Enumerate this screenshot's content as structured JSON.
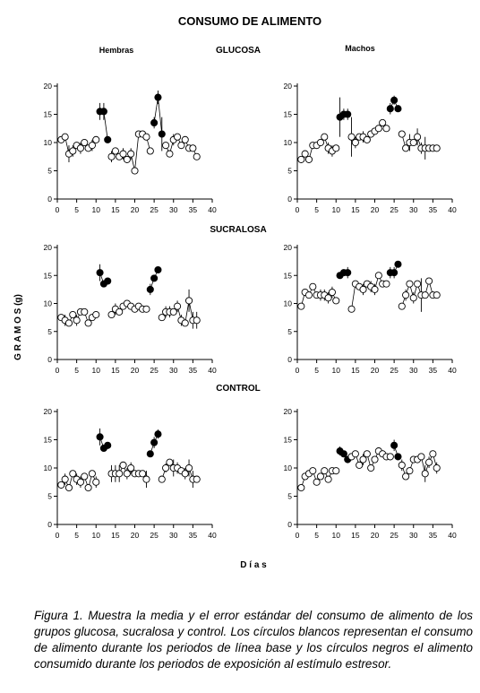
{
  "figure": {
    "title": "CONSUMO DE ALIMENTO",
    "col_labels": [
      "Hembras",
      "Machos"
    ],
    "ylabel": "G R A M O S  (g)",
    "xlabel": "D í a s",
    "caption": "Figura 1. Muestra la media y el error estándar del consumo de alimento de los grupos glucosa, sucralosa y control. Los círculos blancos representan el consumo de alimento durante los periodos de línea base y los círculos negros el alimento consumido durante los periodos de exposición al estímulo estresor."
  },
  "chart_data": [
    {
      "type": "scatter",
      "group": "GLUCOSA",
      "sex": "Hembras",
      "x": [
        1,
        2,
        3,
        4,
        5,
        6,
        7,
        8,
        9,
        10,
        11,
        12,
        13,
        14,
        15,
        16,
        17,
        18,
        19,
        20,
        21,
        22,
        23,
        24,
        25,
        26,
        27,
        28,
        29,
        30,
        31,
        32,
        33,
        34,
        35,
        36
      ],
      "y": [
        10.5,
        11,
        8,
        8.5,
        9.5,
        9,
        10,
        9,
        9.5,
        10.5,
        15.5,
        15.5,
        10.5,
        7.5,
        8.5,
        7.5,
        8,
        7,
        8,
        5,
        11.5,
        11.5,
        11,
        8.5,
        13.5,
        18,
        11.5,
        9.5,
        8,
        10.5,
        11,
        9.5,
        10.5,
        9,
        9,
        7.5
      ],
      "err": [
        0,
        0,
        1.5,
        1,
        0,
        1,
        0.5,
        0,
        1,
        0,
        1.5,
        1.5,
        0,
        1,
        0,
        0,
        1,
        0,
        1,
        0,
        0,
        0,
        0,
        0,
        1,
        1.2,
        3,
        0,
        0,
        1,
        0,
        0,
        0,
        0,
        0,
        0
      ],
      "condition": [
        "base",
        "base",
        "base",
        "base",
        "base",
        "base",
        "base",
        "base",
        "base",
        "base",
        "stress",
        "stress",
        "stress",
        "base",
        "base",
        "base",
        "base",
        "base",
        "base",
        "base",
        "base",
        "base",
        "base",
        "base",
        "stress",
        "stress",
        "stress",
        "base",
        "base",
        "base",
        "base",
        "base",
        "base",
        "base",
        "base",
        "base"
      ],
      "xlim": [
        0,
        40
      ],
      "ylim": [
        0,
        20
      ],
      "xticks": [
        0,
        5,
        10,
        15,
        20,
        25,
        30,
        35,
        40
      ],
      "yticks": [
        0,
        5,
        10,
        15,
        20
      ]
    },
    {
      "type": "scatter",
      "group": "GLUCOSA",
      "sex": "Machos",
      "x": [
        1,
        2,
        3,
        4,
        5,
        6,
        7,
        8,
        9,
        10,
        11,
        12,
        13,
        14,
        15,
        16,
        17,
        18,
        19,
        20,
        21,
        22,
        23,
        24,
        25,
        26,
        27,
        28,
        29,
        30,
        31,
        32,
        33,
        34,
        35,
        36
      ],
      "y": [
        7,
        8,
        7,
        9.5,
        9.5,
        10,
        11,
        9,
        8.5,
        9,
        14.5,
        15,
        15,
        11,
        10,
        11,
        11,
        10.5,
        11.5,
        12,
        12.5,
        13.5,
        12.5,
        16,
        17.5,
        16,
        11.5,
        9,
        10,
        10,
        11,
        9,
        9,
        9,
        9,
        9
      ],
      "err": [
        0,
        0,
        0,
        0,
        0,
        0,
        0,
        1,
        1,
        0,
        3.5,
        1,
        1,
        3.5,
        1,
        0,
        1,
        0,
        0,
        0,
        0,
        0,
        0,
        1,
        0.8,
        0,
        0,
        0,
        1.5,
        0.5,
        1.5,
        1,
        2,
        0,
        0,
        0
      ],
      "condition": [
        "base",
        "base",
        "base",
        "base",
        "base",
        "base",
        "base",
        "base",
        "base",
        "base",
        "stress",
        "stress",
        "stress",
        "base",
        "base",
        "base",
        "base",
        "base",
        "base",
        "base",
        "base",
        "base",
        "base",
        "stress",
        "stress",
        "stress",
        "base",
        "base",
        "base",
        "base",
        "base",
        "base",
        "base",
        "base",
        "base",
        "base"
      ],
      "xlim": [
        0,
        40
      ],
      "ylim": [
        0,
        20
      ],
      "xticks": [
        0,
        5,
        10,
        15,
        20,
        25,
        30,
        35,
        40
      ],
      "yticks": [
        0,
        5,
        10,
        15,
        20
      ]
    },
    {
      "type": "scatter",
      "group": "SUCRALOSA",
      "sex": "Hembras",
      "x": [
        1,
        2,
        3,
        4,
        5,
        6,
        7,
        8,
        9,
        10,
        11,
        12,
        13,
        14,
        15,
        16,
        17,
        18,
        19,
        20,
        21,
        22,
        23,
        24,
        25,
        26,
        27,
        28,
        29,
        30,
        31,
        32,
        33,
        34,
        35,
        36
      ],
      "y": [
        7.5,
        7,
        6.5,
        8,
        7,
        8.5,
        8.5,
        6.5,
        7.5,
        8,
        15.5,
        13.5,
        14,
        8,
        9,
        8.5,
        9.5,
        10,
        9.5,
        9,
        9.5,
        9,
        9,
        12.5,
        14.5,
        16,
        7.5,
        8.5,
        8.5,
        8.5,
        9.5,
        7,
        6.5,
        10.5,
        7,
        7
      ],
      "err": [
        0,
        1,
        0,
        0,
        1,
        0,
        0,
        0,
        0,
        0,
        1.5,
        0,
        0,
        0,
        1,
        0,
        0,
        0,
        0,
        0,
        0,
        0,
        0,
        1,
        0,
        0,
        0,
        1,
        1,
        0,
        1,
        1,
        0,
        2,
        1.5,
        1.5
      ],
      "condition": [
        "base",
        "base",
        "base",
        "base",
        "base",
        "base",
        "base",
        "base",
        "base",
        "base",
        "stress",
        "stress",
        "stress",
        "base",
        "base",
        "base",
        "base",
        "base",
        "base",
        "base",
        "base",
        "base",
        "base",
        "stress",
        "stress",
        "stress",
        "base",
        "base",
        "base",
        "base",
        "base",
        "base",
        "base",
        "base",
        "base",
        "base"
      ],
      "xlim": [
        0,
        40
      ],
      "ylim": [
        0,
        20
      ],
      "xticks": [
        0,
        5,
        10,
        15,
        20,
        25,
        30,
        35,
        40
      ],
      "yticks": [
        0,
        5,
        10,
        15,
        20
      ]
    },
    {
      "type": "scatter",
      "group": "SUCRALOSA",
      "sex": "Machos",
      "x": [
        1,
        2,
        3,
        4,
        5,
        6,
        7,
        8,
        9,
        10,
        11,
        12,
        13,
        14,
        15,
        16,
        17,
        18,
        19,
        20,
        21,
        22,
        23,
        24,
        25,
        26,
        27,
        28,
        29,
        30,
        31,
        32,
        33,
        34,
        35,
        36
      ],
      "y": [
        9.5,
        12,
        11.5,
        13,
        11.5,
        11.5,
        11.5,
        11,
        12,
        10.5,
        15,
        15.5,
        15.5,
        9,
        13.5,
        13,
        12.5,
        13.5,
        13,
        12.5,
        15,
        13.5,
        13.5,
        15.5,
        15.5,
        17,
        9.5,
        11.5,
        13.5,
        11,
        13.5,
        11.5,
        11.5,
        14,
        11.5,
        11.5
      ],
      "err": [
        0,
        0,
        0,
        0,
        0,
        1,
        1,
        1,
        1,
        0,
        0,
        0.6,
        1,
        0,
        0,
        0,
        1,
        0,
        1,
        1,
        0,
        0,
        0,
        1,
        1,
        0,
        0,
        1,
        0,
        1,
        0,
        3,
        0,
        0,
        0,
        0
      ],
      "condition": [
        "base",
        "base",
        "base",
        "base",
        "base",
        "base",
        "base",
        "base",
        "base",
        "base",
        "stress",
        "stress",
        "stress",
        "base",
        "base",
        "base",
        "base",
        "base",
        "base",
        "base",
        "base",
        "base",
        "base",
        "stress",
        "stress",
        "stress",
        "base",
        "base",
        "base",
        "base",
        "base",
        "base",
        "base",
        "base",
        "base",
        "base"
      ],
      "xlim": [
        0,
        40
      ],
      "ylim": [
        0,
        20
      ],
      "xticks": [
        0,
        5,
        10,
        15,
        20,
        25,
        30,
        35,
        40
      ],
      "yticks": [
        0,
        5,
        10,
        15,
        20
      ]
    },
    {
      "type": "scatter",
      "group": "CONTROL",
      "sex": "Hembras",
      "x": [
        1,
        2,
        3,
        4,
        5,
        6,
        7,
        8,
        9,
        10,
        11,
        12,
        13,
        14,
        15,
        16,
        17,
        18,
        19,
        20,
        21,
        22,
        23,
        24,
        25,
        26,
        27,
        28,
        29,
        30,
        31,
        32,
        33,
        34,
        35,
        36
      ],
      "y": [
        7,
        8,
        6.5,
        9,
        8,
        7.5,
        8.5,
        6.5,
        9,
        7.5,
        15.5,
        13.5,
        14,
        9,
        9,
        9,
        10.5,
        9,
        10,
        9,
        9,
        9,
        8,
        12.5,
        14.5,
        16,
        8,
        10,
        11,
        10,
        10,
        9.5,
        9,
        10,
        8,
        8
      ],
      "err": [
        0,
        1,
        0,
        0,
        1,
        1,
        0,
        0,
        0,
        1,
        1.5,
        0,
        0,
        1.5,
        1.5,
        1.5,
        0,
        1,
        1,
        0,
        0,
        0,
        1.5,
        0,
        1,
        0.8,
        0,
        0.8,
        0.6,
        1.5,
        1,
        0,
        1,
        1.5,
        1.5,
        0
      ],
      "condition": [
        "base",
        "base",
        "base",
        "base",
        "base",
        "base",
        "base",
        "base",
        "base",
        "base",
        "stress",
        "stress",
        "stress",
        "base",
        "base",
        "base",
        "base",
        "base",
        "base",
        "base",
        "base",
        "base",
        "base",
        "stress",
        "stress",
        "stress",
        "base",
        "base",
        "base",
        "base",
        "base",
        "base",
        "base",
        "base",
        "base",
        "base"
      ],
      "xlim": [
        0,
        40
      ],
      "ylim": [
        0,
        20
      ],
      "xticks": [
        0,
        5,
        10,
        15,
        20,
        25,
        30,
        35,
        40
      ],
      "yticks": [
        0,
        5,
        10,
        15,
        20
      ]
    },
    {
      "type": "scatter",
      "group": "CONTROL",
      "sex": "Machos",
      "x": [
        1,
        2,
        3,
        4,
        5,
        6,
        7,
        8,
        9,
        10,
        11,
        12,
        13,
        14,
        15,
        16,
        17,
        18,
        19,
        20,
        21,
        22,
        23,
        24,
        25,
        26,
        27,
        28,
        29,
        30,
        31,
        32,
        33,
        34,
        35,
        36
      ],
      "y": [
        6.5,
        8.5,
        9,
        9.5,
        7.5,
        8.5,
        9.5,
        8,
        9.5,
        9.5,
        13,
        12.5,
        11.5,
        12,
        12.5,
        10.5,
        11.5,
        12.5,
        10,
        11.5,
        13,
        12.5,
        12,
        12,
        14,
        12,
        10.5,
        8.5,
        9.5,
        11.5,
        11.5,
        12,
        9,
        11,
        12.5,
        10
      ],
      "err": [
        0,
        0,
        0,
        0,
        0,
        0,
        0,
        0,
        0,
        0,
        0.8,
        0,
        0,
        0,
        0,
        0,
        1,
        0,
        0,
        0,
        0,
        0,
        0,
        0,
        1,
        0,
        1,
        0,
        0,
        0,
        0,
        0,
        1.5,
        1,
        0,
        1
      ],
      "condition": [
        "base",
        "base",
        "base",
        "base",
        "base",
        "base",
        "base",
        "base",
        "base",
        "base",
        "stress",
        "stress",
        "stress",
        "base",
        "base",
        "base",
        "base",
        "base",
        "base",
        "base",
        "base",
        "base",
        "base",
        "base",
        "stress",
        "stress",
        "base",
        "base",
        "base",
        "base",
        "base",
        "base",
        "base",
        "base",
        "base",
        "base"
      ],
      "xlim": [
        0,
        40
      ],
      "ylim": [
        0,
        20
      ],
      "xticks": [
        0,
        5,
        10,
        15,
        20,
        25,
        30,
        35,
        40
      ],
      "yticks": [
        0,
        5,
        10,
        15,
        20
      ]
    }
  ]
}
